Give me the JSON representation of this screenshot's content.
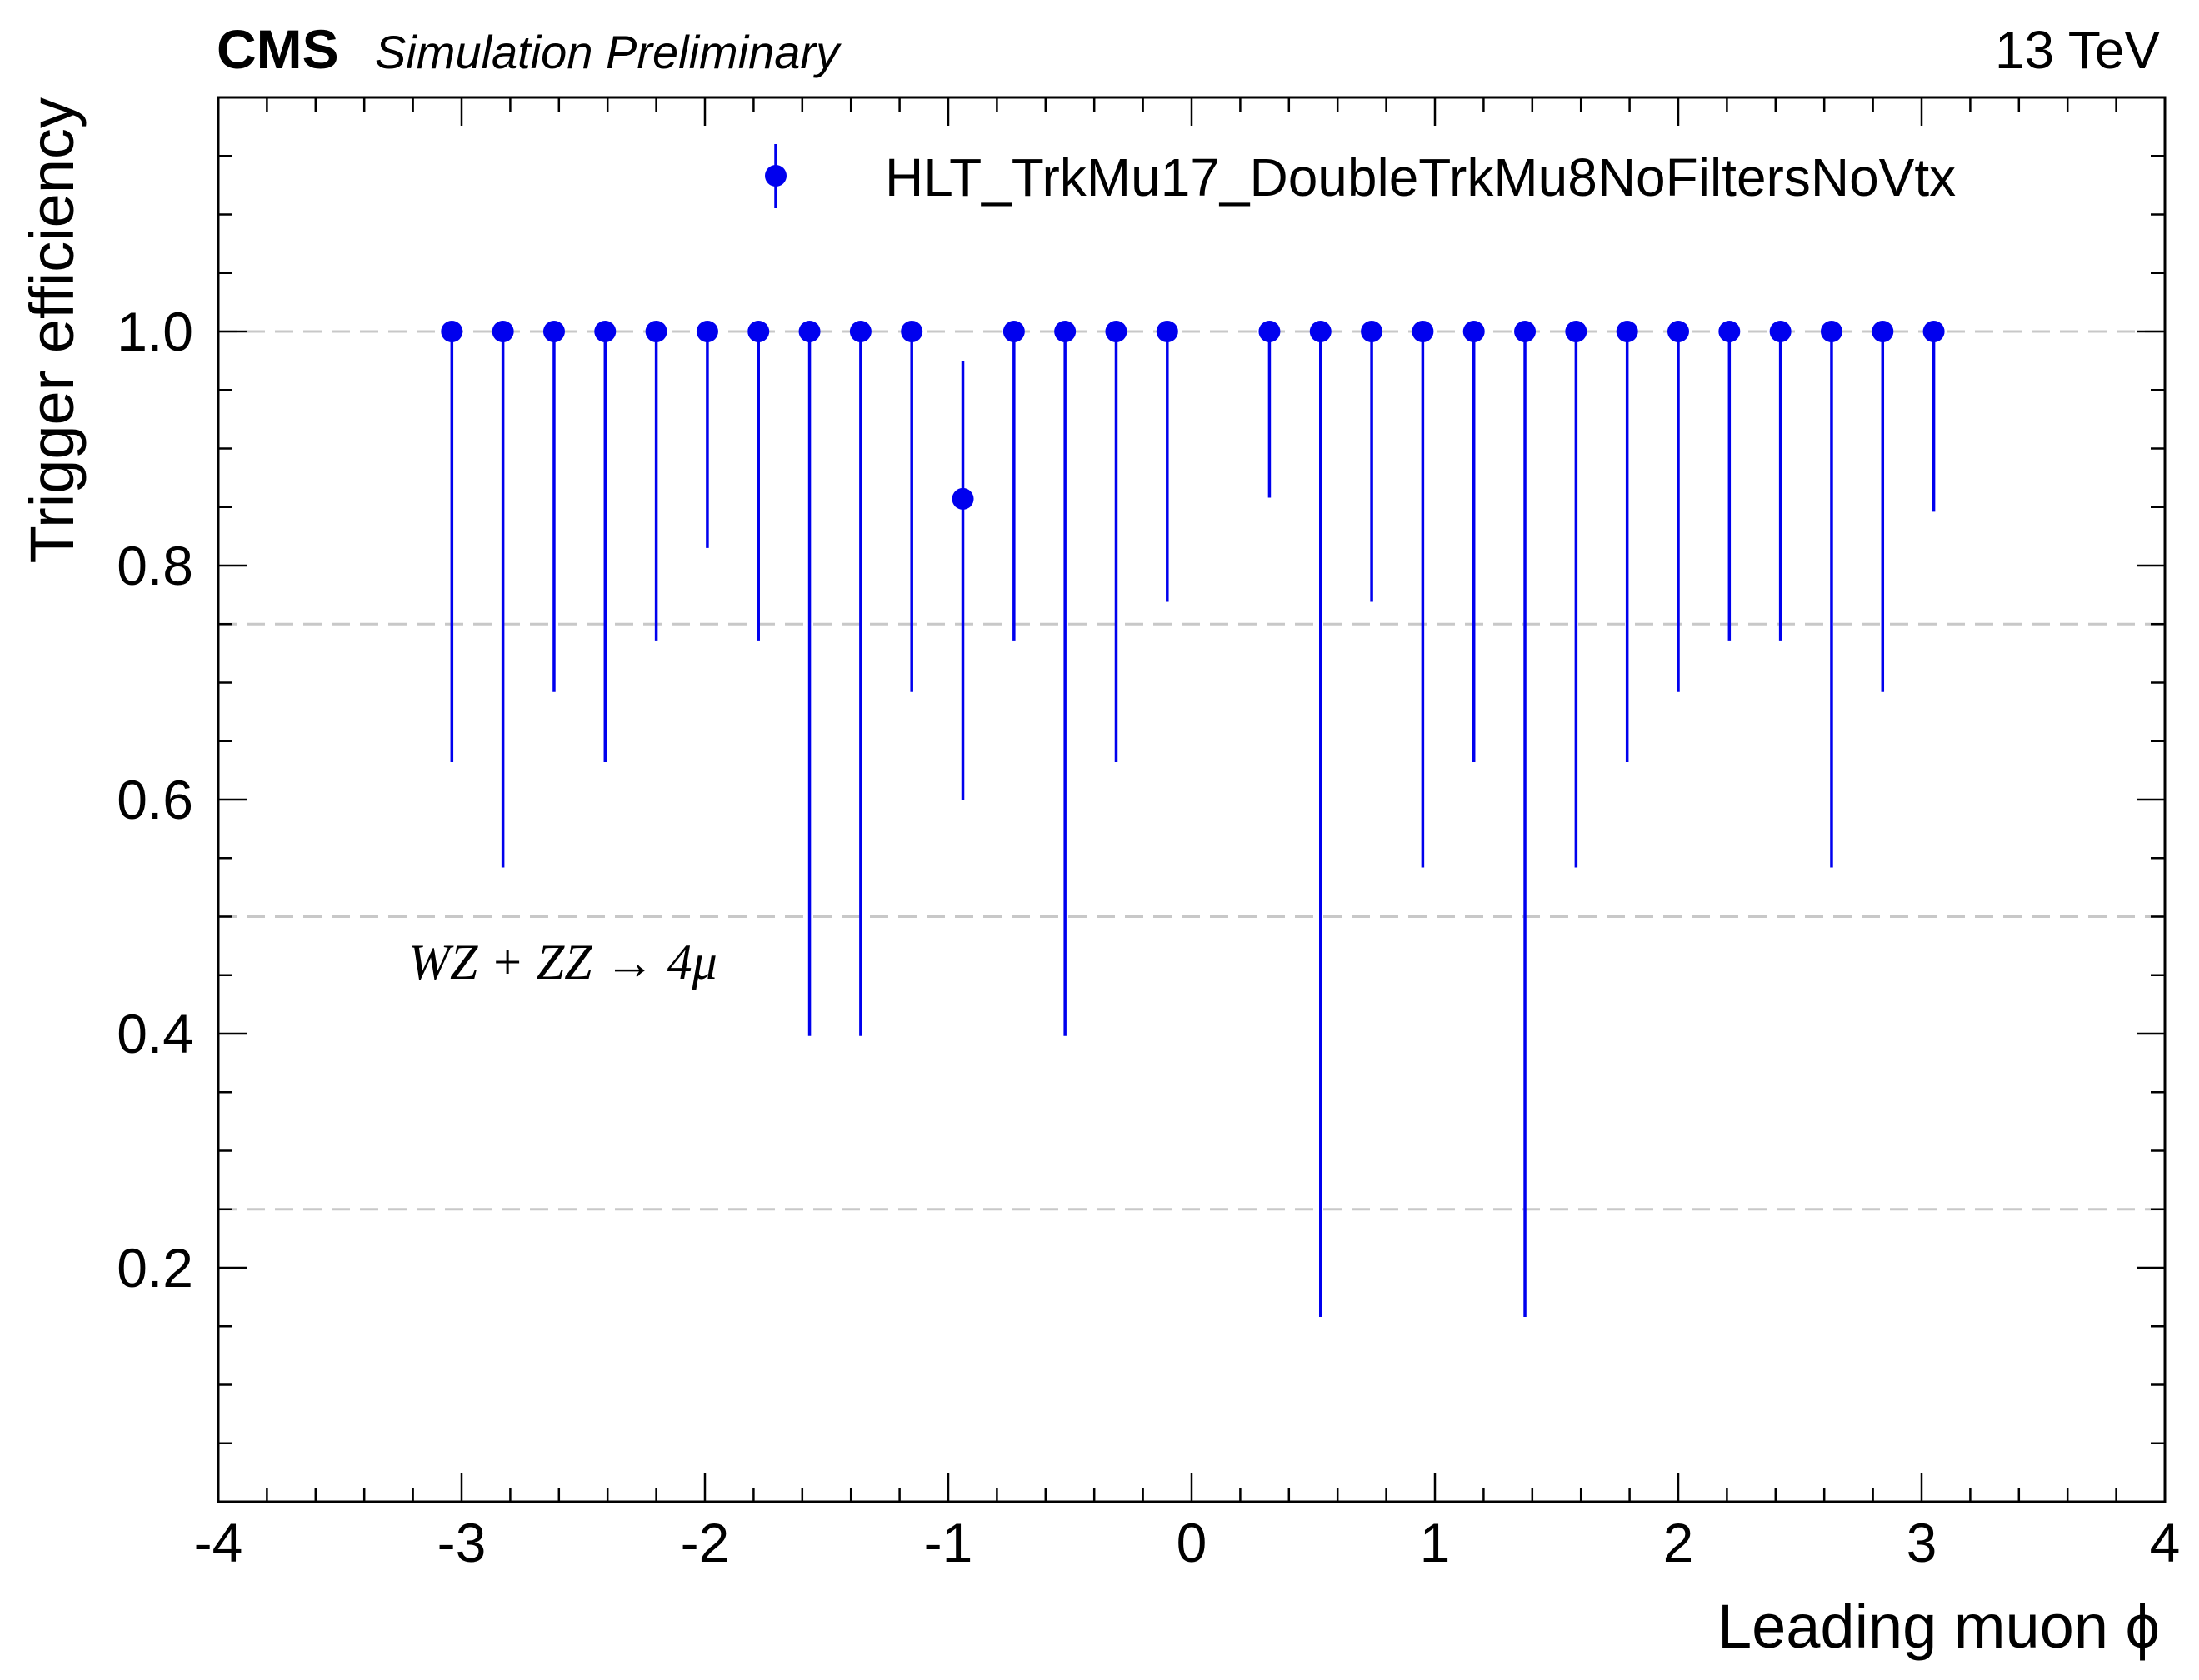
{
  "header": {
    "experiment": "CMS",
    "status": "Simulation Preliminary",
    "energy": "13 TeV"
  },
  "annotation": "WZ + ZZ → 4μ",
  "colors": {
    "marker": "#0000ee",
    "grid": "#c8c8c8",
    "axis": "#000000"
  },
  "chart_data": {
    "type": "scatter",
    "xlabel": "Leading muon ϕ",
    "ylabel": "Trigger efficiency",
    "xlim": [
      -4,
      4
    ],
    "ylim": [
      0,
      1.2
    ],
    "x_ticks": [
      -4,
      -3,
      -2,
      -1,
      0,
      1,
      2,
      3,
      4
    ],
    "x_tick_labels": [
      "-4",
      "-3",
      "-2",
      "-1",
      "0",
      "1",
      "2",
      "3",
      "4"
    ],
    "y_ticks": [
      0.2,
      0.4,
      0.6,
      0.8,
      1.0
    ],
    "y_tick_labels": [
      "0.2",
      "0.4",
      "0.6",
      "0.8",
      "1.0"
    ],
    "grid": {
      "axis": "y",
      "style": "dashed",
      "lines": [
        0.25,
        0.5,
        0.75,
        1.0
      ]
    },
    "legend": {
      "position": "top-right"
    },
    "series": [
      {
        "name": "HLT_TrkMu17_DoubleTrkMu8NoFiltersNoVtx",
        "points": [
          {
            "x": -3.04,
            "y": 1.0,
            "ylow": 0.632
          },
          {
            "x": -2.83,
            "y": 1.0,
            "ylow": 0.542
          },
          {
            "x": -2.62,
            "y": 1.0,
            "ylow": 0.692
          },
          {
            "x": -2.41,
            "y": 1.0,
            "ylow": 0.632
          },
          {
            "x": -2.2,
            "y": 1.0,
            "ylow": 0.736
          },
          {
            "x": -1.99,
            "y": 1.0,
            "ylow": 0.815
          },
          {
            "x": -1.78,
            "y": 1.0,
            "ylow": 0.736
          },
          {
            "x": -1.57,
            "y": 1.0,
            "ylow": 0.398
          },
          {
            "x": -1.36,
            "y": 1.0,
            "ylow": 0.398
          },
          {
            "x": -1.15,
            "y": 1.0,
            "ylow": 0.692
          },
          {
            "x": -0.94,
            "y": 0.857,
            "ylow": 0.6,
            "yhigh": 0.975
          },
          {
            "x": -0.73,
            "y": 1.0,
            "ylow": 0.736
          },
          {
            "x": -0.52,
            "y": 1.0,
            "ylow": 0.398
          },
          {
            "x": -0.31,
            "y": 1.0,
            "ylow": 0.632
          },
          {
            "x": -0.1,
            "y": 1.0,
            "ylow": 0.769
          },
          {
            "x": 0.32,
            "y": 1.0,
            "ylow": 0.858
          },
          {
            "x": 0.53,
            "y": 1.0,
            "ylow": 0.158
          },
          {
            "x": 0.74,
            "y": 1.0,
            "ylow": 0.769
          },
          {
            "x": 0.95,
            "y": 1.0,
            "ylow": 0.542
          },
          {
            "x": 1.16,
            "y": 1.0,
            "ylow": 0.632
          },
          {
            "x": 1.37,
            "y": 1.0,
            "ylow": 0.158
          },
          {
            "x": 1.58,
            "y": 1.0,
            "ylow": 0.542
          },
          {
            "x": 1.79,
            "y": 1.0,
            "ylow": 0.632
          },
          {
            "x": 2.0,
            "y": 1.0,
            "ylow": 0.692
          },
          {
            "x": 2.21,
            "y": 1.0,
            "ylow": 0.736
          },
          {
            "x": 2.42,
            "y": 1.0,
            "ylow": 0.736
          },
          {
            "x": 2.63,
            "y": 1.0,
            "ylow": 0.542
          },
          {
            "x": 2.84,
            "y": 1.0,
            "ylow": 0.692
          },
          {
            "x": 3.05,
            "y": 1.0,
            "ylow": 0.846
          }
        ]
      }
    ]
  }
}
